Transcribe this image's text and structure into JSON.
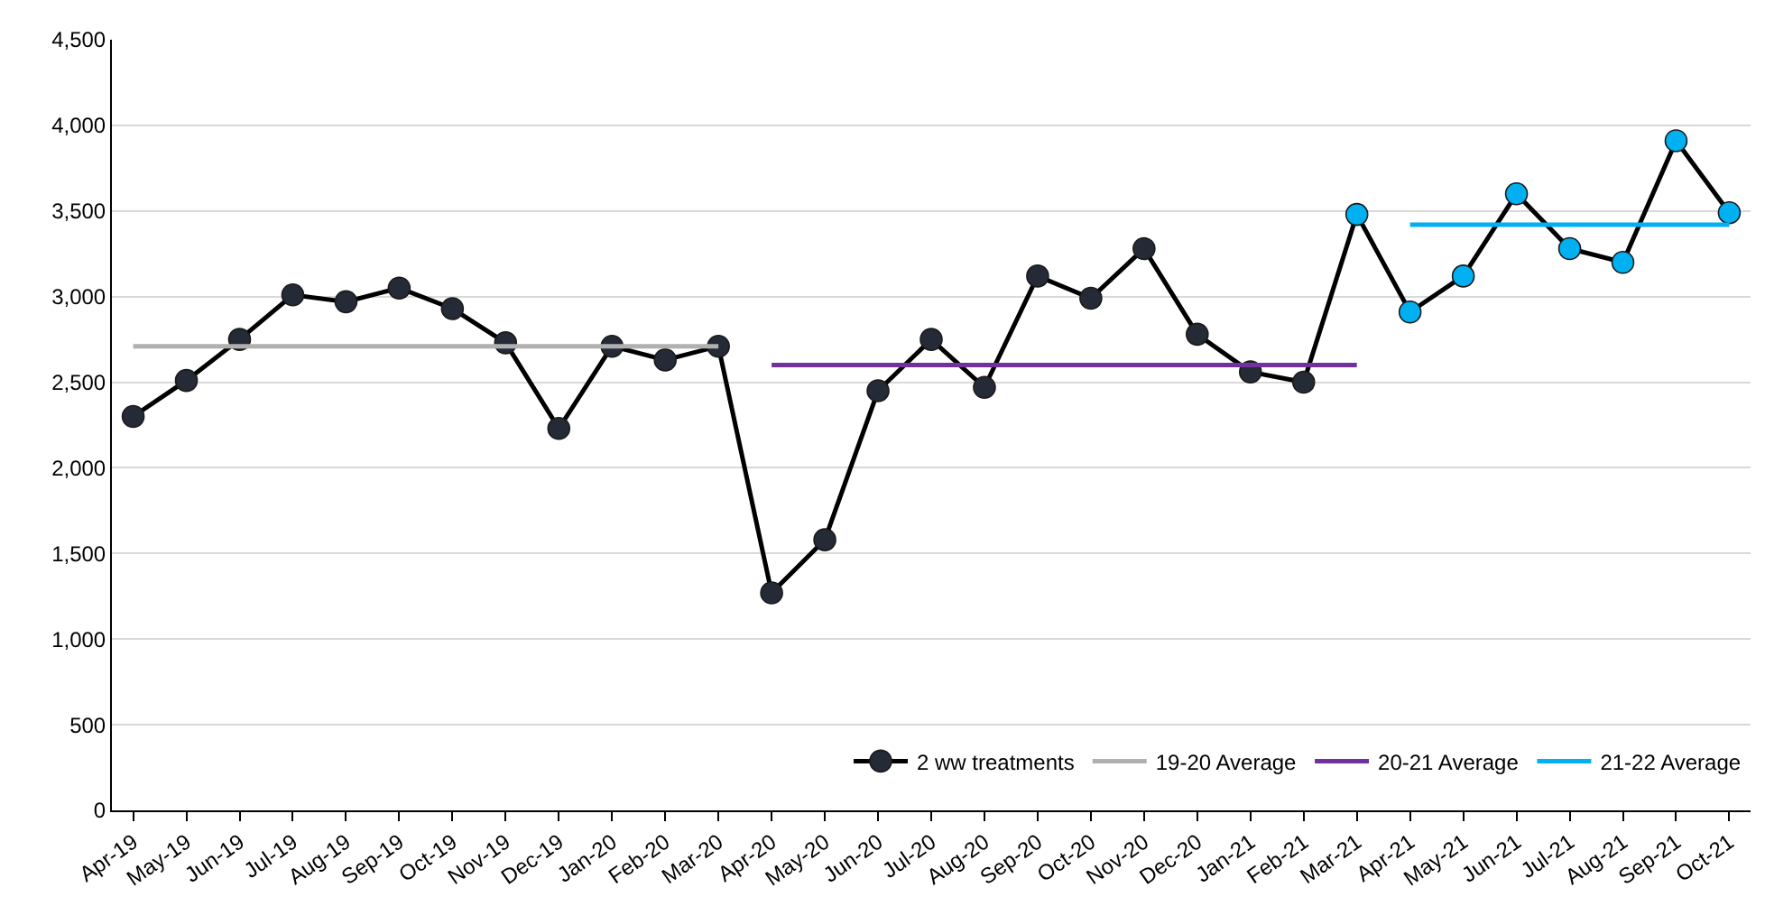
{
  "chart_data": {
    "type": "line",
    "categories": [
      "Apr-19",
      "May-19",
      "Jun-19",
      "Jul-19",
      "Aug-19",
      "Sep-19",
      "Oct-19",
      "Nov-19",
      "Dec-19",
      "Jan-20",
      "Feb-20",
      "Mar-20",
      "Apr-20",
      "May-20",
      "Jun-20",
      "Jul-20",
      "Aug-20",
      "Sep-20",
      "Oct-20",
      "Nov-20",
      "Dec-20",
      "Jan-21",
      "Feb-21",
      "Mar-21",
      "Apr-21",
      "May-21",
      "Jun-21",
      "Jul-21",
      "Aug-21",
      "Sep-21",
      "Oct-21"
    ],
    "series": [
      {
        "name": "2 ww treatments",
        "color": "#000000",
        "marker": "circle",
        "colors": [
          "#252b36",
          "#252b36",
          "#252b36",
          "#252b36",
          "#252b36",
          "#252b36",
          "#252b36",
          "#252b36",
          "#252b36",
          "#252b36",
          "#252b36",
          "#252b36",
          "#252b36",
          "#252b36",
          "#252b36",
          "#252b36",
          "#252b36",
          "#252b36",
          "#252b36",
          "#252b36",
          "#252b36",
          "#252b36",
          "#252b36",
          "#00b0f0",
          "#00b0f0",
          "#00b0f0",
          "#00b0f0",
          "#00b0f0",
          "#00b0f0",
          "#00b0f0",
          "#00b0f0"
        ],
        "values": [
          2300,
          2510,
          2750,
          3010,
          2970,
          3050,
          2930,
          2730,
          2230,
          2710,
          2630,
          2710,
          1270,
          1580,
          2450,
          2750,
          2470,
          3120,
          2990,
          3280,
          2780,
          2560,
          2500,
          3480,
          2910,
          3120,
          3600,
          3280,
          3200,
          3910,
          3490
        ]
      },
      {
        "name": "19-20 Average",
        "color": "#b0b0b0",
        "marker": "none",
        "x": [
          "Apr-19",
          "Mar-20"
        ],
        "values": [
          2710,
          2710
        ]
      },
      {
        "name": "20-21 Average",
        "color": "#7030a0",
        "marker": "none",
        "x": [
          "Apr-20",
          "Mar-21"
        ],
        "values": [
          2600,
          2600
        ]
      },
      {
        "name": "21-22 Average",
        "color": "#00b0f0",
        "marker": "none",
        "x": [
          "Apr-21",
          "Oct-21"
        ],
        "values": [
          3420,
          3420
        ]
      }
    ],
    "ylim": [
      0,
      4500
    ],
    "yticks": [
      {
        "value": 0,
        "label": "0"
      },
      {
        "value": 500,
        "label": "500"
      },
      {
        "value": 1000,
        "label": "1,000"
      },
      {
        "value": 1500,
        "label": "1,500"
      },
      {
        "value": 2000,
        "label": "2,000"
      },
      {
        "value": 2500,
        "label": "2,500"
      },
      {
        "value": 3000,
        "label": "3,000"
      },
      {
        "value": 3500,
        "label": "3,500"
      },
      {
        "value": 4000,
        "label": "4,000"
      },
      {
        "value": 4500,
        "label": "4,500"
      }
    ],
    "grid": "y",
    "legend": "bottom right"
  }
}
